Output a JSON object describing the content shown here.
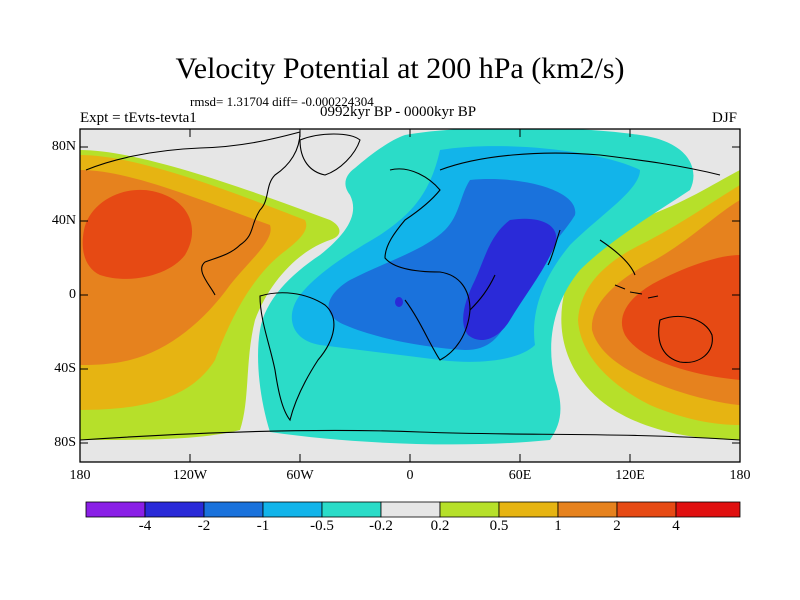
{
  "title": "Velocity Potential at 200 hPa (km2/s)",
  "stats": "rmsd= 1.31704 diff= -0.000224304",
  "experiment": "Expt = tEvts-tevta1",
  "period": "0992kyr BP - 0000kyr BP",
  "season": "DJF",
  "lat_labels": [
    "80N",
    "40N",
    "0",
    "40S",
    "80S"
  ],
  "lon_labels": [
    "180",
    "120W",
    "60W",
    "0",
    "60E",
    "120E",
    "180"
  ],
  "colorbar": {
    "labels": [
      "-4",
      "-2",
      "-1",
      "-0.5",
      "-0.2",
      "0.2",
      "0.5",
      "1",
      "2",
      "4"
    ],
    "colors": [
      "#8a1fe6",
      "#2a2ad8",
      "#1a72dc",
      "#12b4ea",
      "#2bdcc8",
      "#e6e6e6",
      "#b6e02a",
      "#e6b412",
      "#e6821e",
      "#e64a14",
      "#e01010"
    ]
  }
}
